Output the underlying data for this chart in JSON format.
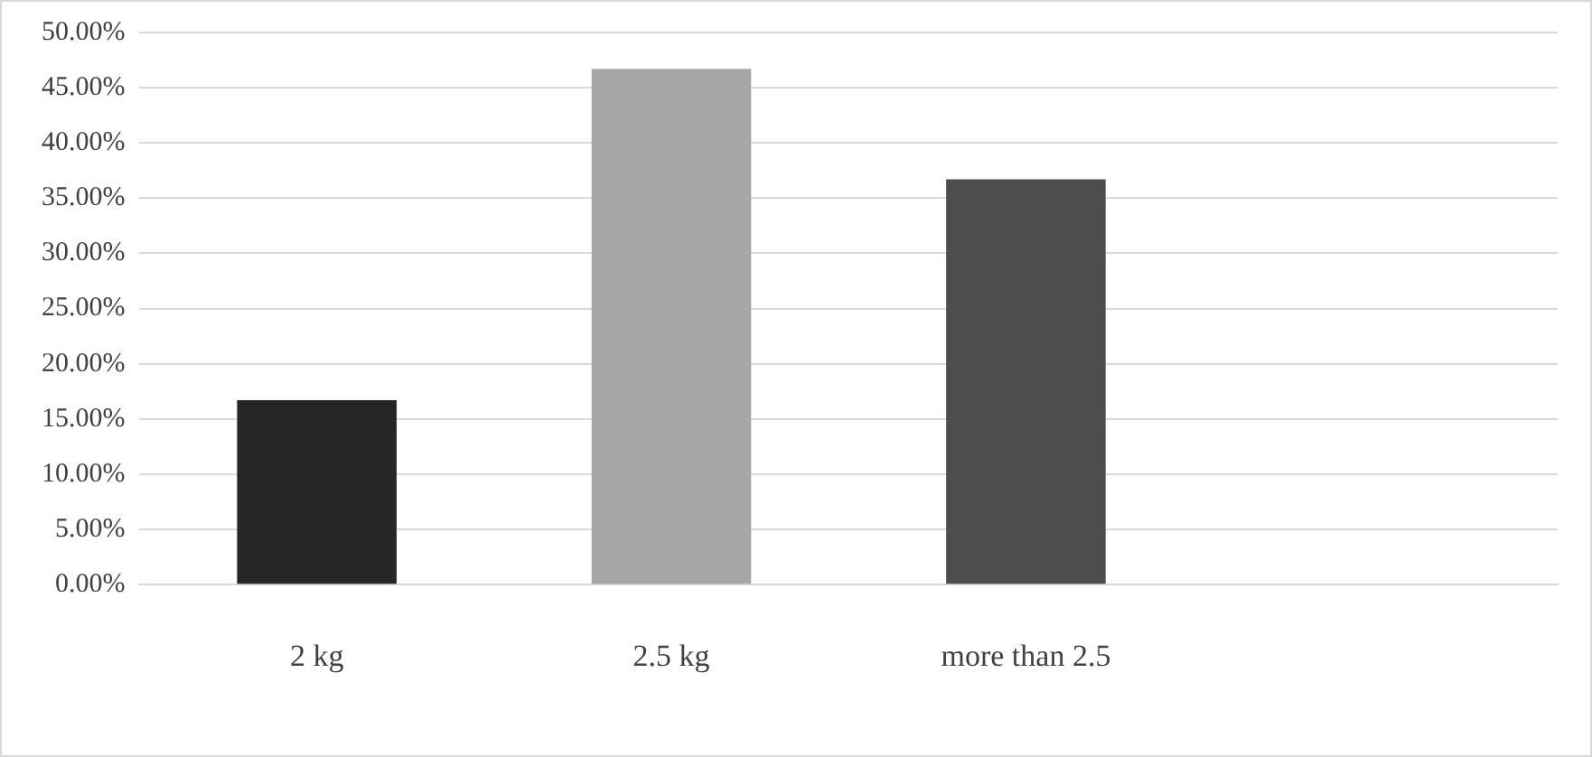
{
  "chart_data": {
    "type": "bar",
    "categories": [
      "2 kg",
      "2.5 kg",
      "more than 2.5",
      null
    ],
    "series": [
      {
        "values": [
          16.7,
          46.7,
          36.7,
          null
        ],
        "colors": [
          "#262626",
          "#a6a6a6",
          "#4d4d4d",
          null
        ]
      }
    ],
    "ylim": [
      0,
      50
    ],
    "yticks": [
      {
        "value": 0,
        "label": "0.00%"
      },
      {
        "value": 5,
        "label": "5.00%"
      },
      {
        "value": 10,
        "label": "10.00%"
      },
      {
        "value": 15,
        "label": "15.00%"
      },
      {
        "value": 20,
        "label": "20.00%"
      },
      {
        "value": 25,
        "label": "25.00%"
      },
      {
        "value": 30,
        "label": "30.00%"
      },
      {
        "value": 35,
        "label": "35.00%"
      },
      {
        "value": 40,
        "label": "40.00%"
      },
      {
        "value": 45,
        "label": "45.00%"
      },
      {
        "value": 50,
        "label": "50.00%"
      }
    ],
    "grid": "y",
    "legend": false
  }
}
